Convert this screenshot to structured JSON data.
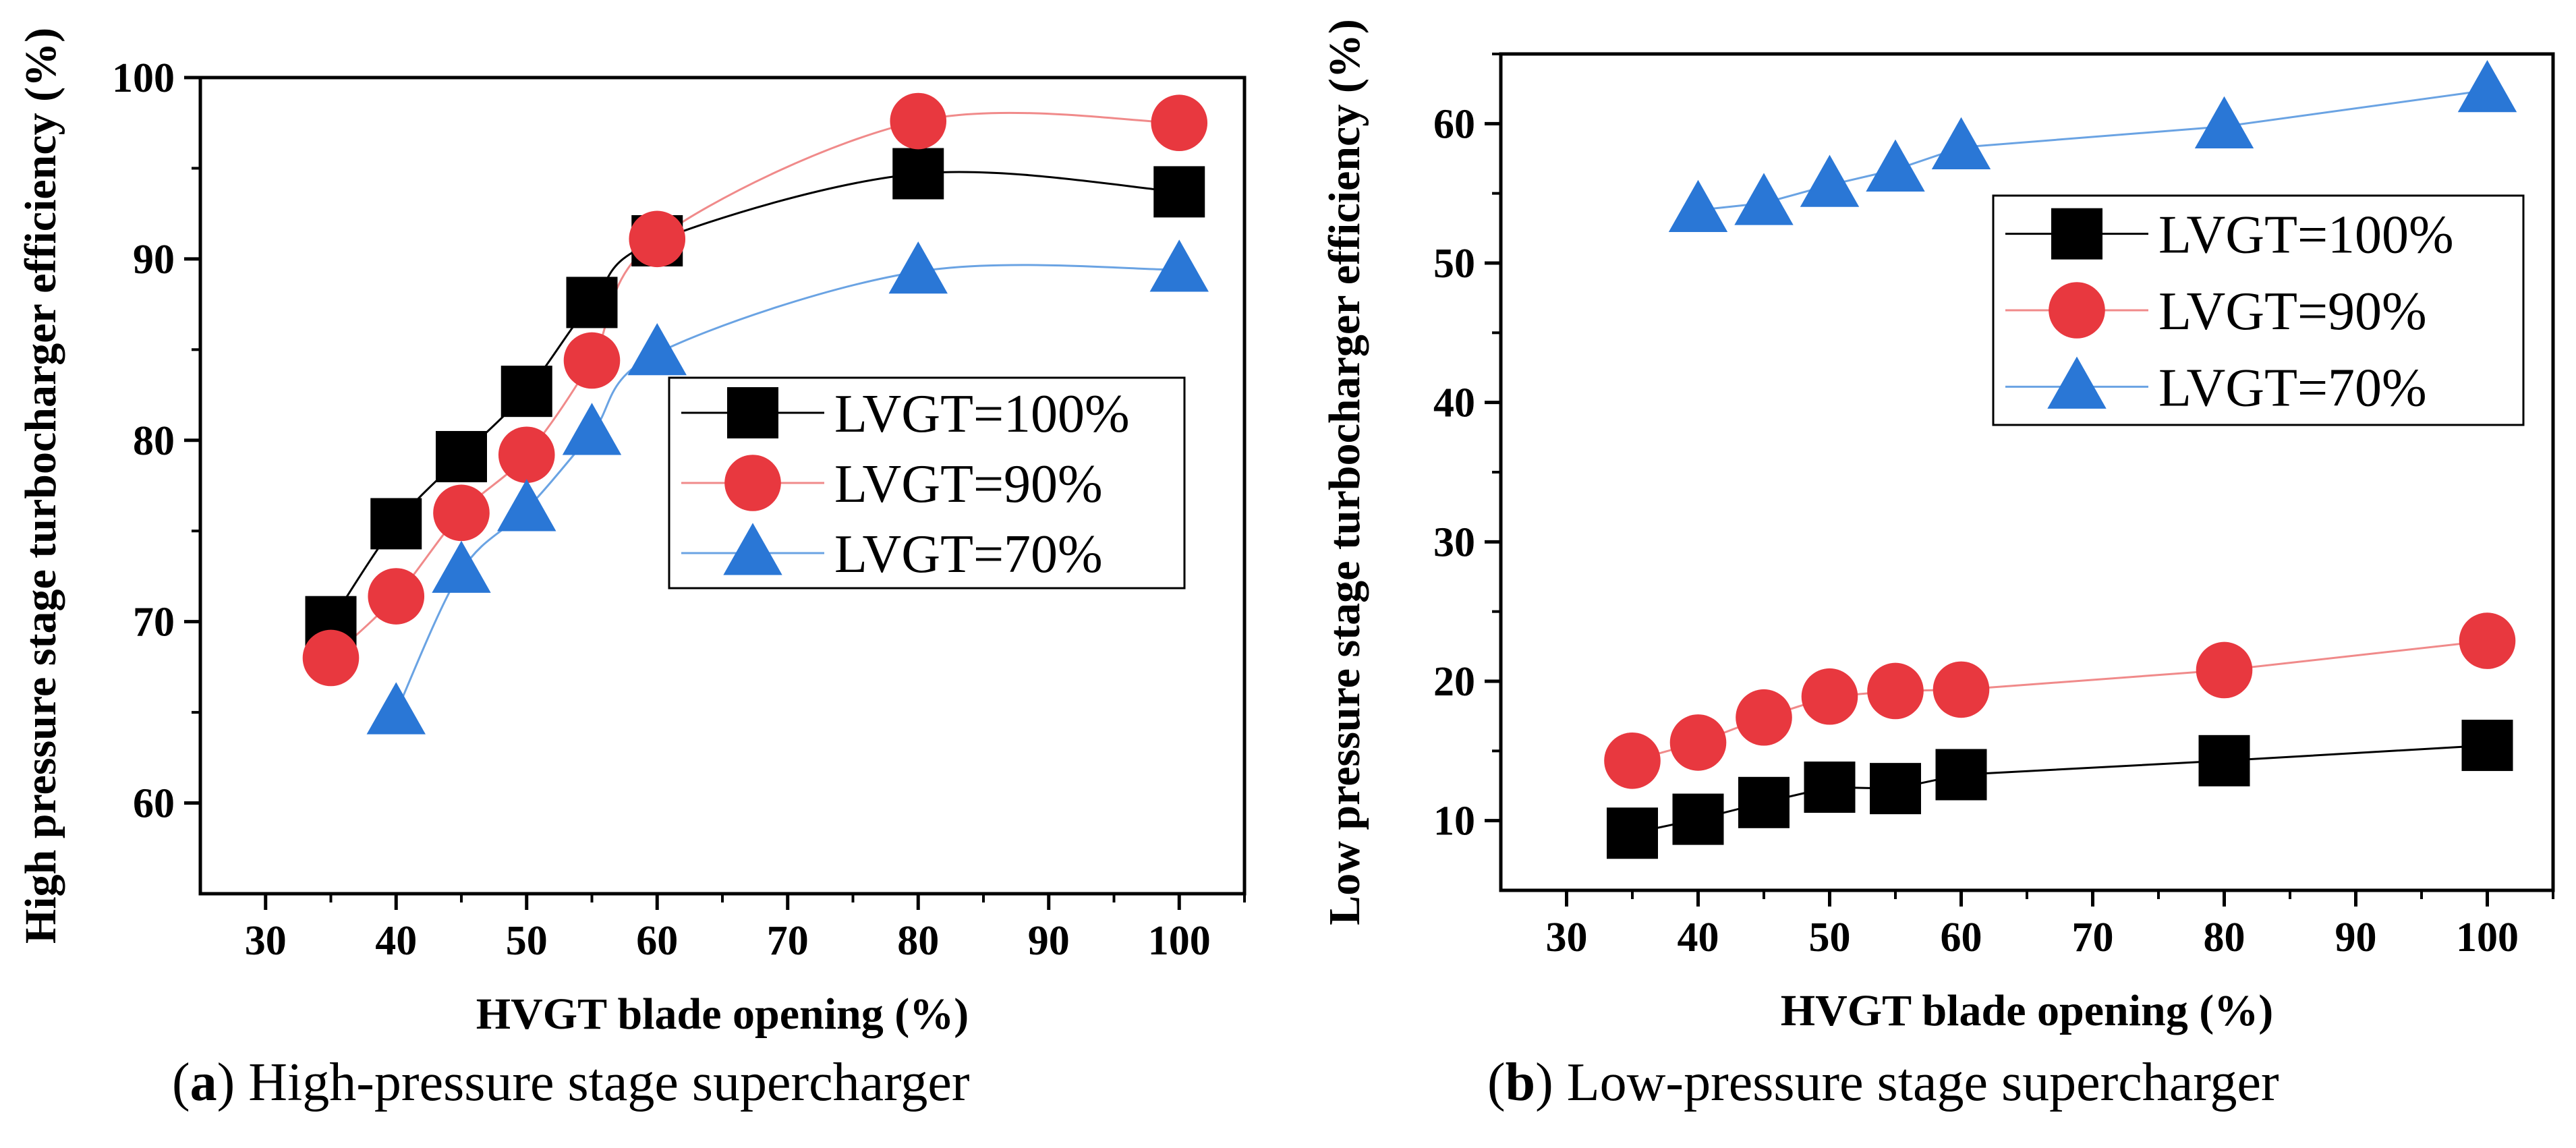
{
  "colors": {
    "LVGT=100%": "#000000",
    "LVGT=90%": "#e8383f",
    "LVGT=70%": "#2a77d6",
    "line_90": "#f08a8a",
    "line_70": "#6aa3e3"
  },
  "captions": [
    {
      "tag": "a",
      "text": "High-pressure stage supercharger"
    },
    {
      "tag": "b",
      "text": "Low-pressure stage supercharger"
    }
  ],
  "chart_data": [
    {
      "type": "scatter",
      "xlabel": "HVGT blade opening (%)",
      "ylabel": "High pressure stage turbocharger efficiency (%)",
      "xlim": [
        25,
        105
      ],
      "ylim": [
        55,
        100
      ],
      "xticks": [
        30,
        40,
        50,
        60,
        70,
        80,
        90,
        100
      ],
      "yticks": [
        60,
        70,
        80,
        90,
        100
      ],
      "legend_position": "middle-right",
      "series": [
        {
          "name": "LVGT=100%",
          "marker": "square",
          "x": [
            35,
            40,
            45,
            50,
            55,
            60,
            80,
            100
          ],
          "y": [
            70,
            75.4,
            79.1,
            82.7,
            87.6,
            91,
            94.7,
            93.7
          ]
        },
        {
          "name": "LVGT=90%",
          "marker": "circle",
          "x": [
            35,
            40,
            45,
            50,
            55,
            60,
            80,
            100
          ],
          "y": [
            68,
            71.4,
            76,
            79.2,
            84.4,
            91.1,
            97.6,
            97.5
          ]
        },
        {
          "name": "LVGT=70%",
          "marker": "triangle",
          "x": [
            40,
            45,
            50,
            55,
            60,
            80,
            100
          ],
          "y": [
            65,
            72.8,
            76.2,
            80.4,
            84.8,
            89.3,
            89.4
          ]
        }
      ]
    },
    {
      "type": "scatter",
      "xlabel": "HVGT blade opening (%)",
      "ylabel": "Low pressure stage turbocharger efficiency (%)",
      "xlim": [
        25,
        105
      ],
      "ylim": [
        5,
        65
      ],
      "xticks": [
        30,
        40,
        50,
        60,
        70,
        80,
        90,
        100
      ],
      "yticks": [
        10,
        20,
        30,
        40,
        50,
        60
      ],
      "legend_position": "upper-right",
      "series": [
        {
          "name": "LVGT=100%",
          "marker": "square",
          "x": [
            35,
            40,
            45,
            50,
            55,
            60,
            80,
            100
          ],
          "y": [
            9.1,
            10.1,
            11.3,
            12.4,
            12.3,
            13.3,
            14.3,
            15.4
          ]
        },
        {
          "name": "LVGT=90%",
          "marker": "circle",
          "x": [
            35,
            40,
            45,
            50,
            55,
            60,
            80,
            100
          ],
          "y": [
            14.3,
            15.6,
            17.4,
            18.9,
            19.3,
            19.4,
            20.8,
            22.9
          ]
        },
        {
          "name": "LVGT=70%",
          "marker": "triangle",
          "x": [
            40,
            45,
            50,
            55,
            60,
            80,
            100
          ],
          "y": [
            53.8,
            54.3,
            55.6,
            56.7,
            58.3,
            59.8,
            62.4
          ]
        }
      ]
    }
  ]
}
